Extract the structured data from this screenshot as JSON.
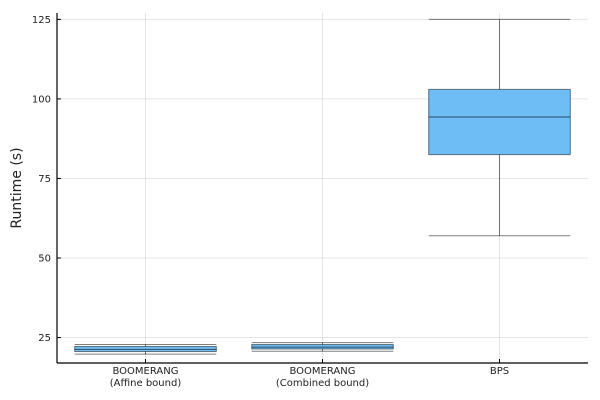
{
  "chart_data": {
    "type": "box",
    "ylabel": "Runtime (s)",
    "xlabel": "",
    "ylim": [
      17,
      127
    ],
    "yticks": [
      25,
      50,
      75,
      100,
      125
    ],
    "grid": true,
    "fill_color": "#6ebef5",
    "categories": [
      [
        "BOOMERANG",
        "(Affine bound)"
      ],
      [
        "BOOMERANG",
        "(Combined bound)"
      ],
      [
        "BPS"
      ]
    ],
    "series": [
      {
        "min": 19.8,
        "q1": 20.6,
        "median": 21.3,
        "q3": 22.2,
        "max": 22.8
      },
      {
        "min": 20.7,
        "q1": 21.4,
        "median": 22.0,
        "q3": 22.8,
        "max": 23.4
      },
      {
        "min": 57.0,
        "q1": 82.5,
        "median": 94.3,
        "q3": 103.0,
        "max": 125.0
      }
    ]
  }
}
